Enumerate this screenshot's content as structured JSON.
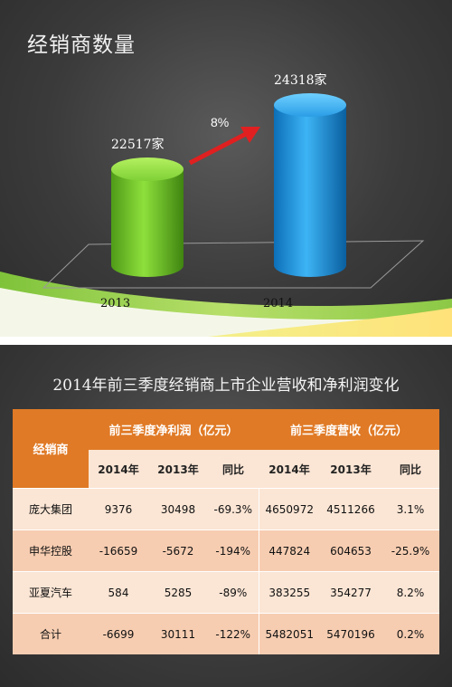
{
  "slide1": {
    "title": "经销商数量",
    "growth_label": "8%",
    "colors": {
      "bar_2013": "#6cc42a",
      "bar_2014": "#1e8fd9",
      "arrow": "#e02020"
    }
  },
  "chart_data": {
    "type": "bar",
    "title": "经销商数量",
    "categories": [
      "2013",
      "2014"
    ],
    "values": [
      22517,
      24318
    ],
    "value_labels": [
      "22517家",
      "24318家"
    ],
    "growth_label": "8%",
    "xlabel": "",
    "ylabel": ""
  },
  "slide2": {
    "title": "2014年前三季度经销商上市企业营收和净利润变化",
    "table": {
      "corner_header": "经销商",
      "group_headers": [
        "前三季度净利润（亿元）",
        "前三季度营收（亿元）"
      ],
      "sub_headers": [
        "2014年",
        "2013年",
        "同比",
        "2014年",
        "2013年",
        "同比"
      ],
      "rows": [
        {
          "name": "庞大集团",
          "cells": [
            "9376",
            "30498",
            "-69.3%",
            "4650972",
            "4511266",
            "3.1%"
          ]
        },
        {
          "name": "申华控股",
          "cells": [
            "-16659",
            "-5672",
            "-194%",
            "447824",
            "604653",
            "-25.9%"
          ]
        },
        {
          "name": "亚夏汽车",
          "cells": [
            "584",
            "5285",
            "-89%",
            "383255",
            "354277",
            "8.2%"
          ]
        },
        {
          "name": "合计",
          "cells": [
            "-6699",
            "30111",
            "-122%",
            "5482051",
            "5470196",
            "0.2%"
          ]
        }
      ]
    }
  }
}
